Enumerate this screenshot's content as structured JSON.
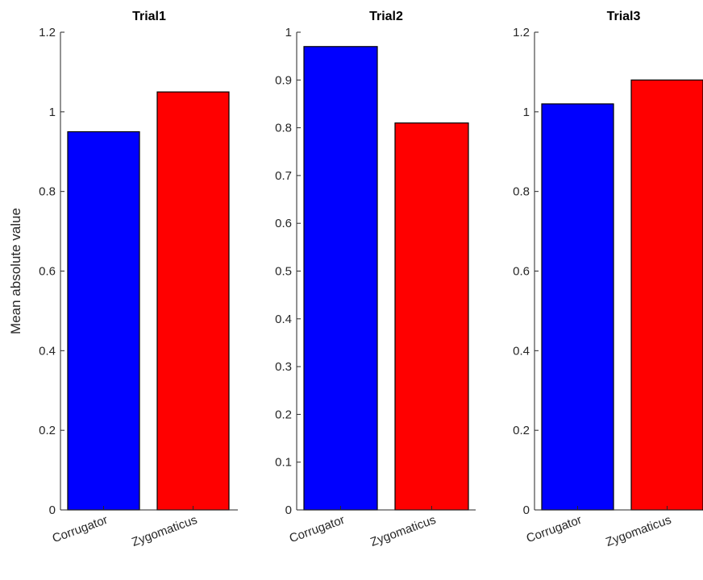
{
  "chart_data": [
    {
      "type": "bar",
      "title": "Trial1",
      "ylabel": "Mean absolute value",
      "xlabel": "",
      "categories": [
        "Corrugator",
        "Zygomaticus"
      ],
      "values": [
        0.95,
        1.05
      ],
      "ylim": [
        0,
        1.2
      ],
      "yticks": [
        0,
        0.2,
        0.4,
        0.6,
        0.8,
        1,
        1.2
      ],
      "ytick_labels": [
        "0",
        "0.2",
        "0.4",
        "0.6",
        "0.8",
        "1",
        "1.2"
      ],
      "bar_colors": [
        "#0000ff",
        "#ff0000"
      ],
      "grid": false
    },
    {
      "type": "bar",
      "title": "Trial2",
      "ylabel": "",
      "xlabel": "",
      "categories": [
        "Corrugator",
        "Zygomaticus"
      ],
      "values": [
        0.97,
        0.81
      ],
      "ylim": [
        0,
        1
      ],
      "yticks": [
        0,
        0.1,
        0.2,
        0.3,
        0.4,
        0.5,
        0.6,
        0.7,
        0.8,
        0.9,
        1
      ],
      "ytick_labels": [
        "0",
        "0.1",
        "0.2",
        "0.3",
        "0.4",
        "0.5",
        "0.6",
        "0.7",
        "0.8",
        "0.9",
        "1"
      ],
      "bar_colors": [
        "#0000ff",
        "#ff0000"
      ],
      "grid": false
    },
    {
      "type": "bar",
      "title": "Trial3",
      "ylabel": "",
      "xlabel": "",
      "categories": [
        "Corrugator",
        "Zygomaticus"
      ],
      "values": [
        1.02,
        1.08
      ],
      "ylim": [
        0,
        1.2
      ],
      "yticks": [
        0,
        0.2,
        0.4,
        0.6,
        0.8,
        1,
        1.2
      ],
      "ytick_labels": [
        "0",
        "0.2",
        "0.4",
        "0.6",
        "0.8",
        "1",
        "1.2"
      ],
      "bar_colors": [
        "#0000ff",
        "#ff0000"
      ],
      "grid": false
    }
  ]
}
